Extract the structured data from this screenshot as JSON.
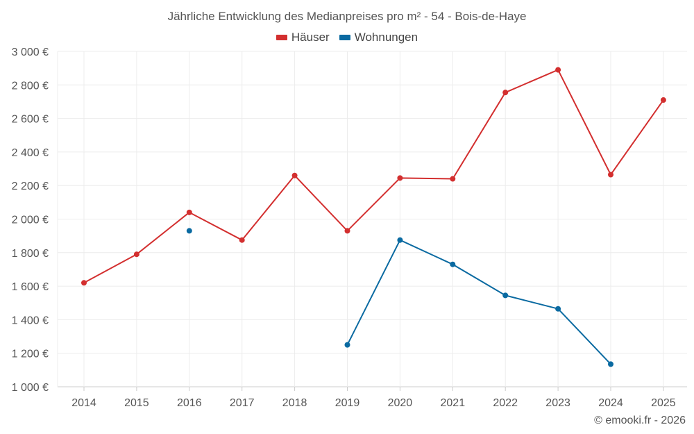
{
  "chart_data": {
    "type": "line",
    "title": "Jährliche Entwicklung des Medianpreises pro m² - 54 - Bois-de-Haye",
    "categories": [
      "2014",
      "2015",
      "2016",
      "2017",
      "2018",
      "2019",
      "2020",
      "2021",
      "2022",
      "2023",
      "2024",
      "2025"
    ],
    "y_ticks": [
      1000,
      1200,
      1400,
      1600,
      1800,
      2000,
      2200,
      2400,
      2600,
      2800,
      3000
    ],
    "y_tick_labels": [
      "1 000 €",
      "1 200 €",
      "1 400 €",
      "1 600 €",
      "1 800 €",
      "2 000 €",
      "2 200 €",
      "2 400 €",
      "2 600 €",
      "2 800 €",
      "3 000 €"
    ],
    "ylim": [
      1000,
      3000
    ],
    "xlabel": "",
    "ylabel": "",
    "grid": true,
    "legend_position": "top-center",
    "series": [
      {
        "name": "Häuser",
        "color": "#d32f2f",
        "values": [
          1620,
          1790,
          2040,
          1875,
          2260,
          1930,
          2245,
          2240,
          2755,
          2890,
          2265,
          2710
        ]
      },
      {
        "name": "Wohnungen",
        "color": "#0a6aa1",
        "values": [
          null,
          null,
          1930,
          null,
          null,
          1250,
          1875,
          1730,
          1545,
          1465,
          1135,
          null
        ]
      }
    ]
  },
  "footer": {
    "credit": "© emooki.fr - 2026"
  }
}
